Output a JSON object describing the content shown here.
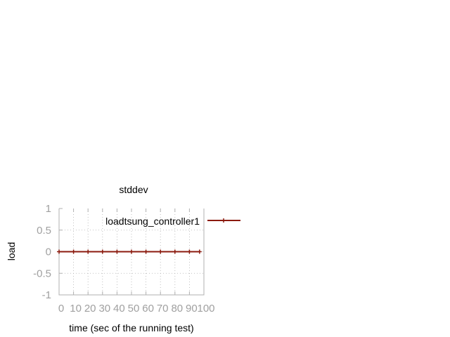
{
  "chart_data": {
    "type": "line",
    "title": "stddev",
    "xlabel": "time (sec of the running test)",
    "ylabel": "load",
    "xlim": [
      0,
      100
    ],
    "ylim": [
      -1,
      1
    ],
    "xticks": [
      "0",
      "10",
      "20",
      "30",
      "40",
      "50",
      "60",
      "70",
      "80",
      "90",
      "100"
    ],
    "yticks": [
      "-1",
      "-0.5",
      "0",
      "0.5",
      "1"
    ],
    "grid": true,
    "legend_position": "top-right",
    "series": [
      {
        "name": "loadtsung_controller1",
        "color": "#8b1a0e",
        "marker": "plus",
        "x": [
          0,
          10,
          20,
          30,
          40,
          50,
          60,
          70,
          80,
          90,
          97
        ],
        "y": [
          0,
          0,
          0,
          0,
          0,
          0,
          0,
          0,
          0,
          0,
          0
        ]
      }
    ]
  }
}
